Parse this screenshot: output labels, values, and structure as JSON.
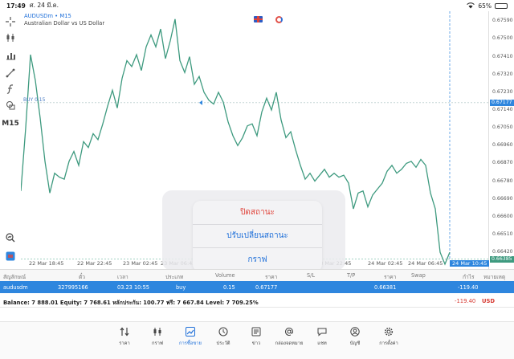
{
  "status_bar": {
    "time": "17:49",
    "date": "ศ. 24 มี.ค.",
    "battery": "65%",
    "battery_level": 0.65
  },
  "chart_info": {
    "symbol_line": "AUDUSDm • M15",
    "description": "Australian Dollar vs US Dollar"
  },
  "left_toolbar": {
    "timeframe": "M15"
  },
  "price_axis": {
    "ticks": [
      "0.67590",
      "0.67500",
      "0.67410",
      "0.67320",
      "0.67230",
      "0.67140",
      "0.67050",
      "0.66960",
      "0.66870",
      "0.66780",
      "0.66690",
      "0.66600",
      "0.66510",
      "0.66420"
    ],
    "buy_tag": "0.67177",
    "current_tag": "0.66385"
  },
  "order_line_label": "BUY 0.15",
  "time_axis": [
    "22 Mar 18:45",
    "22 Mar 22:45",
    "23 Mar 02:45",
    "23 Mar 06:45",
    "23 Mar 10:45",
    "23 Mar 14:45",
    "23 Mar 18:45",
    "23 Mar 22:45",
    "24 Mar 02:45",
    "24 Mar 06:45",
    "24 Mar 10:45"
  ],
  "action_menu": {
    "close_position": "ปิดสถานะ",
    "modify_position": "ปรับเปลี่ยนสถานะ",
    "chart": "กราฟ"
  },
  "table": {
    "headers": {
      "symbol": "สัญลักษณ์",
      "ticket": "ตั๋ว",
      "time": "เวลา",
      "type": "ประเภท",
      "volume": "Volume",
      "price": "ราคา",
      "sl": "S/L",
      "tp": "T/P",
      "current_price": "ราคา",
      "swap": "Swap",
      "profit": "กำไร",
      "comment": "หมายเหตุ"
    },
    "row": {
      "symbol": "audusdm",
      "ticket": "327995166",
      "time": "03.23 10:55",
      "type": "buy",
      "volume": "0.15",
      "price": "0.67177",
      "current_price": "0.66381",
      "profit": "-119.40"
    }
  },
  "balance": {
    "text": "Balance: 7 888.01 Equity: 7 768.61 หลักประกัน: 100.77 ฟรี: 7 667.84 Level: 7 709.25%",
    "profit": "-119.40",
    "currency": "USD"
  },
  "tabs": [
    "ราคา",
    "กราฟ",
    "การซื้อขาย",
    "ประวัติ",
    "ข่าว",
    "กล่องจดหมาย",
    "แชท",
    "บัญชี",
    "การตั้งค่า"
  ],
  "colors": {
    "accent": "#2e86de",
    "line": "#3e9a7f",
    "danger": "#e0443b"
  },
  "chart_data": {
    "type": "line",
    "price_min": 0.66335,
    "price_max": 0.6764,
    "series": [
      {
        "values": [
          0.6673,
          0.6705,
          0.6742,
          0.6729,
          0.671,
          0.6688,
          0.6672,
          0.6682,
          0.668,
          0.6679,
          0.6688,
          0.6693,
          0.6686,
          0.6698,
          0.6695,
          0.6702,
          0.6699,
          0.6707,
          0.6716,
          0.6724,
          0.6715,
          0.673,
          0.6739,
          0.6736,
          0.6742,
          0.6734,
          0.6746,
          0.6752,
          0.6746,
          0.6755,
          0.674,
          0.6749,
          0.676,
          0.6739,
          0.6733,
          0.6741,
          0.6727,
          0.6731,
          0.6723,
          0.6719,
          0.6717,
          0.6723,
          0.6718,
          0.6708,
          0.6701,
          0.6696,
          0.67,
          0.6706,
          0.6707,
          0.6701,
          0.6713,
          0.672,
          0.6714,
          0.6723,
          0.6709,
          0.67,
          0.6703,
          0.6694,
          0.6686,
          0.6679,
          0.6682,
          0.6678,
          0.6681,
          0.6684,
          0.668,
          0.6682,
          0.668,
          0.6681,
          0.6677,
          0.6664,
          0.6672,
          0.6673,
          0.6665,
          0.6671,
          0.6674,
          0.6677,
          0.6683,
          0.6686,
          0.6682,
          0.6684,
          0.6687,
          0.6688,
          0.6685,
          0.6689,
          0.6686,
          0.6672,
          0.6664,
          0.6642,
          0.6636,
          0.6642
        ]
      }
    ]
  }
}
